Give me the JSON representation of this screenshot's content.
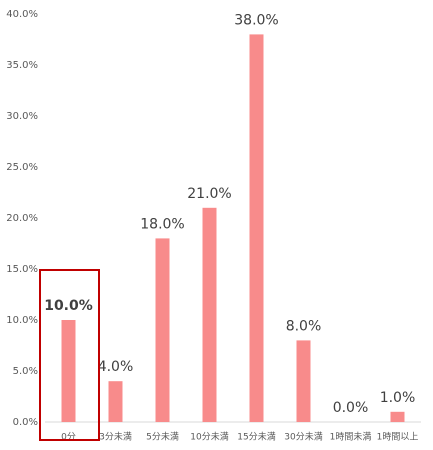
{
  "chart_data": {
    "type": "bar",
    "categories": [
      "0分",
      "3分未満",
      "5分未満",
      "10分未満",
      "15分未満",
      "30分未満",
      "1時間未満",
      "1時間以上"
    ],
    "values": [
      10,
      4,
      18,
      21,
      38,
      8,
      0,
      1
    ],
    "value_labels": [
      "10.0%",
      "4.0%",
      "18.0%",
      "21.0%",
      "38.0%",
      "8.0%",
      "0.0%",
      "1.0%"
    ],
    "color": "#f88b8b",
    "highlight": 0,
    "highlight_color": "#c00000",
    "ylim": [
      0,
      40
    ],
    "yticks": [
      {
        "value": 0,
        "label": "0.0%"
      },
      {
        "value": 5,
        "label": "5.0%"
      },
      {
        "value": 10,
        "label": "10.0%"
      },
      {
        "value": 15,
        "label": "15.0%"
      },
      {
        "value": 20,
        "label": "20.0%"
      },
      {
        "value": 25,
        "label": "25.0%"
      },
      {
        "value": 30,
        "label": "30.0%"
      },
      {
        "value": 35,
        "label": "35.0%"
      },
      {
        "value": 40,
        "label": "40.0%"
      }
    ],
    "grid": false
  }
}
